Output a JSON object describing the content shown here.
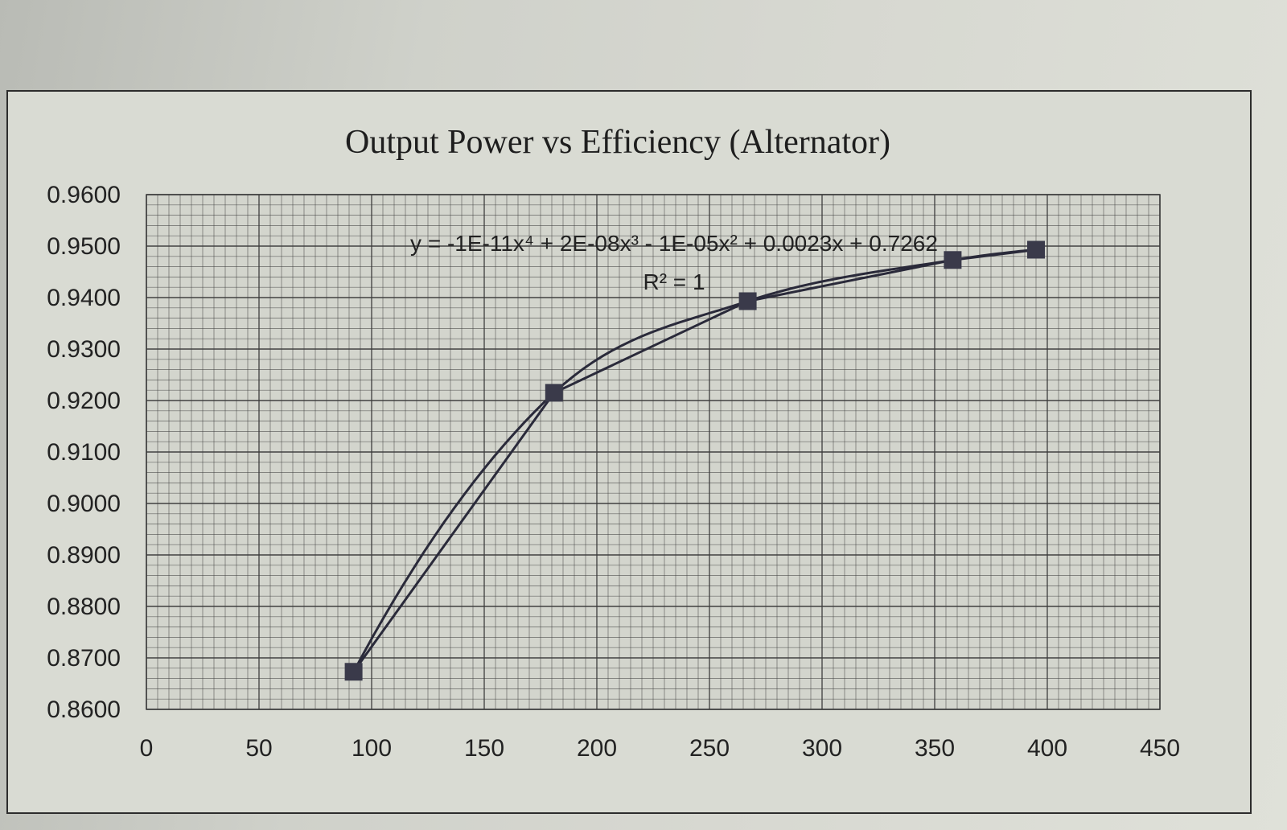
{
  "chart_data": {
    "type": "line",
    "title": "Output Power vs Efficiency  (Alternator)",
    "xlabel": "",
    "ylabel": "",
    "xlim": [
      0,
      450
    ],
    "ylim": [
      0.86,
      0.96
    ],
    "x_ticks": [
      "0",
      "50",
      "100",
      "150",
      "200",
      "250",
      "300",
      "350",
      "400",
      "450"
    ],
    "y_ticks": [
      "0.8600",
      "0.8700",
      "0.8800",
      "0.8900",
      "0.9000",
      "0.9100",
      "0.9200",
      "0.9300",
      "0.9400",
      "0.9500",
      "0.9600"
    ],
    "grid": true,
    "series": [
      {
        "x": [
          92,
          181,
          267,
          358,
          395
        ],
        "y": [
          0.8673,
          0.9215,
          0.9393,
          0.9473,
          0.9493
        ],
        "marker": "square"
      }
    ],
    "trendline": {
      "type": "polynomial",
      "order": 4,
      "equation": "y = -1E-11x⁴ + 2E-08x³ - 1E-05x² + 0.0023x + 0.7262",
      "r_squared": "R² = 1"
    },
    "colors": {
      "line": "#2a2a3a",
      "marker": "#3a3a4a",
      "grid": "#3a3a3a"
    }
  }
}
